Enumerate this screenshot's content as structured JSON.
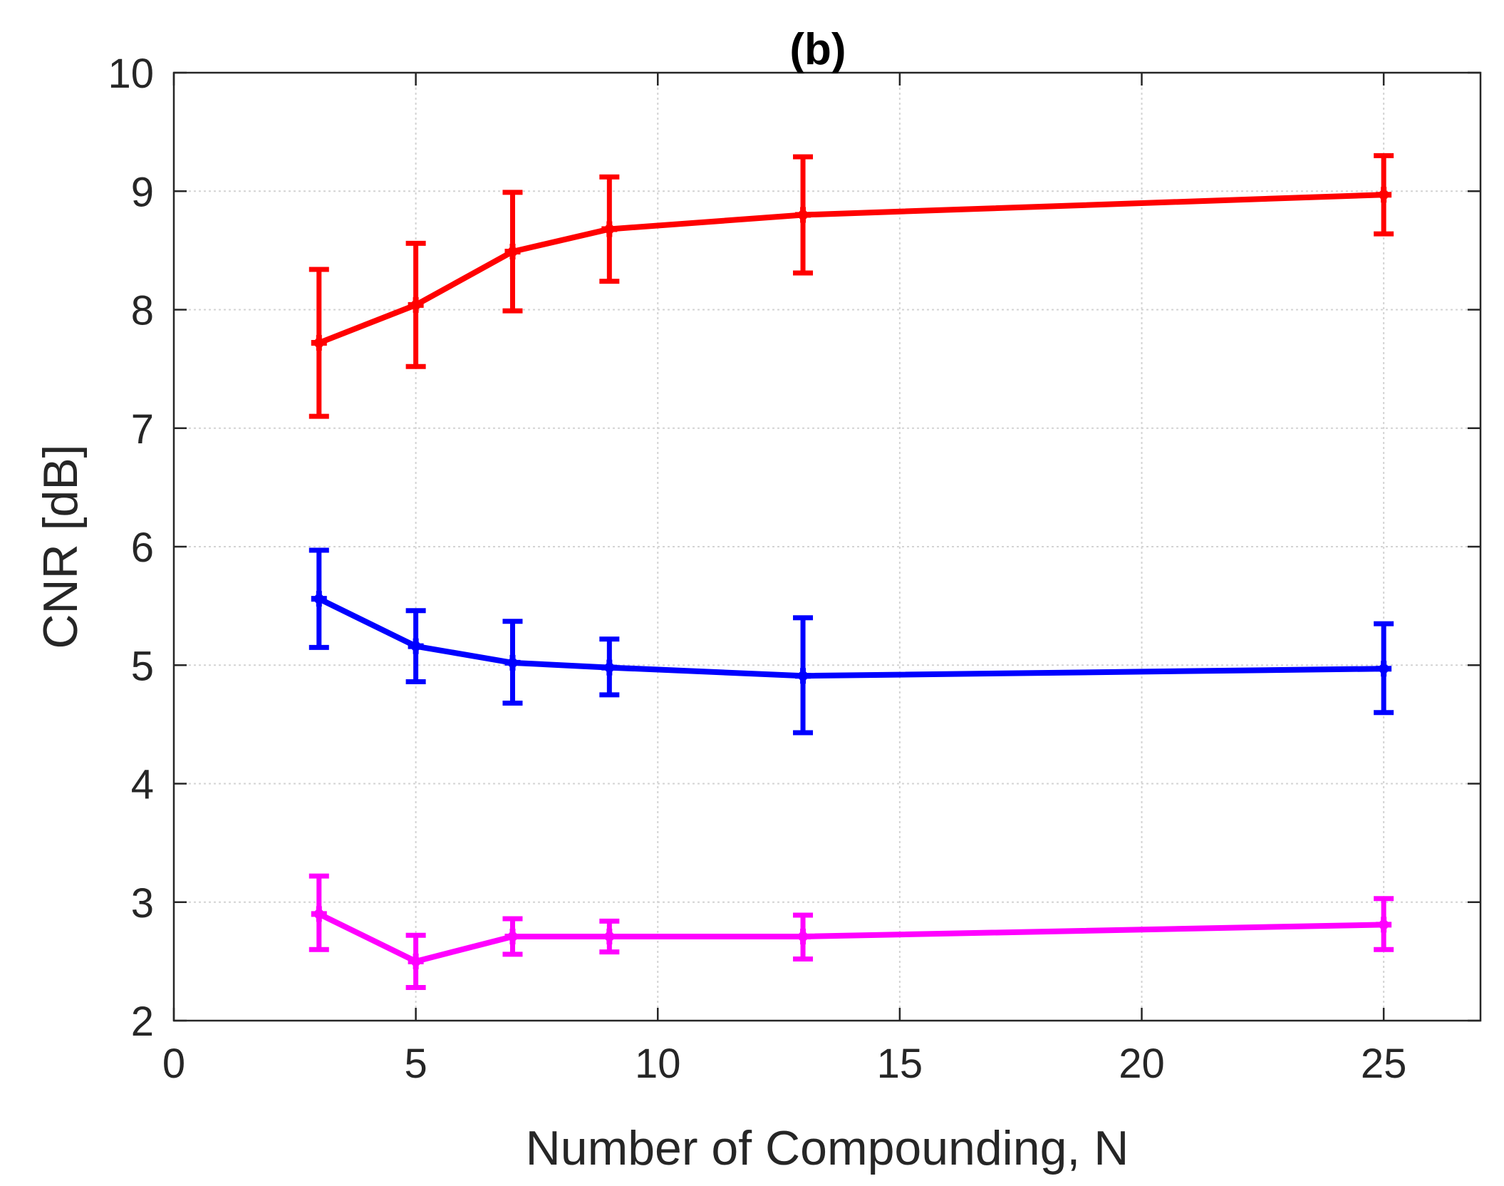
{
  "chart_data": {
    "type": "line",
    "title": "(b)",
    "xlabel": "Number of Compounding, N",
    "ylabel": "CNR [dB]",
    "xlim": [
      0,
      27
    ],
    "ylim": [
      2,
      10
    ],
    "xticks": [
      0,
      5,
      10,
      15,
      20,
      25
    ],
    "yticks": [
      2,
      3,
      4,
      5,
      6,
      7,
      8,
      9,
      10
    ],
    "grid": true,
    "x": [
      3,
      5,
      7,
      9,
      13,
      25
    ],
    "series": [
      {
        "name": "red",
        "color": "#ff0000",
        "values": [
          7.72,
          8.04,
          8.49,
          8.68,
          8.8,
          8.97
        ],
        "err_low": [
          7.1,
          7.52,
          7.99,
          8.24,
          8.31,
          8.64
        ],
        "err_high": [
          8.34,
          8.56,
          8.99,
          9.12,
          9.29,
          9.3
        ]
      },
      {
        "name": "blue",
        "color": "#0000ff",
        "values": [
          5.56,
          5.16,
          5.02,
          4.98,
          4.91,
          4.97
        ],
        "err_low": [
          5.15,
          4.86,
          4.68,
          4.75,
          4.43,
          4.6
        ],
        "err_high": [
          5.97,
          5.46,
          5.37,
          5.22,
          5.4,
          5.35
        ]
      },
      {
        "name": "magenta",
        "color": "#ff00ff",
        "values": [
          2.9,
          2.5,
          2.71,
          2.71,
          2.71,
          2.81
        ],
        "err_low": [
          2.6,
          2.28,
          2.56,
          2.58,
          2.52,
          2.6
        ],
        "err_high": [
          3.22,
          2.72,
          2.86,
          2.84,
          2.89,
          3.03
        ]
      }
    ]
  }
}
